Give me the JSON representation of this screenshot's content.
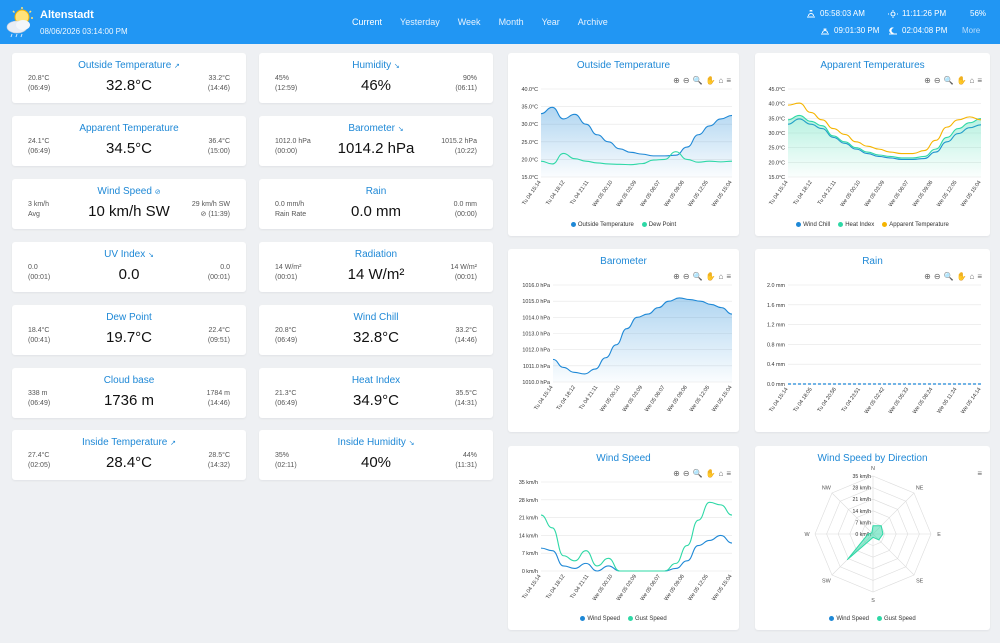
{
  "header": {
    "station": "Altenstadt",
    "timestamp": "08/06/2026 03:14:00 PM",
    "nav": [
      "Current",
      "Yesterday",
      "Week",
      "Month",
      "Year",
      "Archive"
    ],
    "active_nav": "Current",
    "sunrise": "05:58:03 AM",
    "daylight": "11:11:26 PM",
    "moon_phase": "56%",
    "sunset": "09:01:30 PM",
    "moonrise": "02:04:08 PM",
    "more": "More",
    "accent": "#2196f3"
  },
  "cards": [
    {
      "title": "Outside Temperature",
      "trend": "↗",
      "value": "32.8°C",
      "lo1": "20.8°C",
      "lo2": "(06:49)",
      "hi1": "33.2°C",
      "hi2": "(14:46)"
    },
    {
      "title": "Humidity",
      "trend": "↘",
      "value": "46%",
      "lo1": "45%",
      "lo2": "(12:59)",
      "hi1": "90%",
      "hi2": "(06:11)"
    },
    {
      "title": "Apparent Temperature",
      "trend": "",
      "value": "34.5°C",
      "lo1": "24.1°C",
      "lo2": "(06:49)",
      "hi1": "36.4°C",
      "hi2": "(15:00)"
    },
    {
      "title": "Barometer",
      "trend": "↘",
      "value": "1014.2 hPa",
      "lo1": "1012.0 hPa",
      "lo2": "(00:00)",
      "hi1": "1015.2 hPa",
      "hi2": "(10:22)"
    },
    {
      "title": "Wind Speed",
      "trend": "⊘",
      "value": "10 km/h SW",
      "lo1": "3 km/h",
      "lo2": "Avg",
      "hi1": "29 km/h SW",
      "hi2": "⊘ (11:39)"
    },
    {
      "title": "Rain",
      "trend": "",
      "value": "0.0 mm",
      "lo1": "0.0 mm/h",
      "lo2": "Rain Rate",
      "hi1": "0.0 mm",
      "hi2": "(00:00)"
    },
    {
      "title": "UV Index",
      "trend": "↘",
      "value": "0.0",
      "lo1": "0.0",
      "lo2": "(00:01)",
      "hi1": "0.0",
      "hi2": "(00:01)"
    },
    {
      "title": "Radiation",
      "trend": "",
      "value": "14 W/m²",
      "lo1": "14 W/m²",
      "lo2": "(00:01)",
      "hi1": "14 W/m²",
      "hi2": "(00:01)"
    },
    {
      "title": "Dew Point",
      "trend": "",
      "value": "19.7°C",
      "lo1": "18.4°C",
      "lo2": "(00:41)",
      "hi1": "22.4°C",
      "hi2": "(09:51)"
    },
    {
      "title": "Wind Chill",
      "trend": "",
      "value": "32.8°C",
      "lo1": "20.8°C",
      "lo2": "(06:49)",
      "hi1": "33.2°C",
      "hi2": "(14:46)"
    },
    {
      "title": "Cloud base",
      "trend": "",
      "value": "1736 m",
      "lo1": "338 m",
      "lo2": "(06:49)",
      "hi1": "1784 m",
      "hi2": "(14:46)"
    },
    {
      "title": "Heat Index",
      "trend": "",
      "value": "34.9°C",
      "lo1": "21.3°C",
      "lo2": "(06:49)",
      "hi1": "35.5°C",
      "hi2": "(14:31)"
    },
    {
      "title": "Inside Temperature",
      "trend": "↗",
      "value": "28.4°C",
      "lo1": "27.4°C",
      "lo2": "(02:05)",
      "hi1": "28.5°C",
      "hi2": "(14:32)"
    },
    {
      "title": "Inside Humidity",
      "trend": "↘",
      "value": "40%",
      "lo1": "35%",
      "lo2": "(02:11)",
      "hi1": "44%",
      "hi2": "(11:31)"
    }
  ],
  "chart_data": [
    {
      "type": "area",
      "title": "Outside Temperature",
      "x_ticks": [
        "Tu 04 15:14",
        "Tu 04 18:12",
        "Tu 04 21:11",
        "We 05 00:10",
        "We 05 03:09",
        "We 05 06:07",
        "We 05 09:06",
        "We 05 12:05",
        "We 05 15:04"
      ],
      "y_ticks": [
        "40.0°C",
        "35.0°C",
        "30.0°C",
        "25.0°C",
        "20.0°C",
        "15.0°C"
      ],
      "ylim": [
        15,
        40
      ],
      "series": [
        {
          "name": "Outside Temperature",
          "color": "#1e88d6",
          "fill": true,
          "values": [
            33.0,
            34.8,
            31.5,
            32.8,
            30.0,
            27.0,
            25.0,
            23.0,
            22.0,
            21.5,
            21.0,
            21.0,
            21.2,
            23.5,
            27.0,
            29.5,
            31.5,
            32.5
          ]
        },
        {
          "name": "Dew Point",
          "color": "#2ed8a6",
          "fill": false,
          "values": [
            19.5,
            18.7,
            21.7,
            20.2,
            19.5,
            19.0,
            18.7,
            18.6,
            18.5,
            18.8,
            19.8,
            20.0,
            22.2,
            20.0,
            19.2,
            19.5,
            19.3,
            19.5
          ]
        }
      ]
    },
    {
      "type": "area",
      "title": "Apparent Temperatures",
      "x_ticks": [
        "Tu 04 15:14",
        "Tu 04 18:12",
        "Tu 04 21:11",
        "We 05 00:10",
        "We 05 03:09",
        "We 05 06:07",
        "We 05 09:06",
        "We 05 12:05",
        "We 05 15:04"
      ],
      "y_ticks": [
        "45.0°C",
        "40.0°C",
        "35.0°C",
        "30.0°C",
        "25.0°C",
        "20.0°C",
        "15.0°C"
      ],
      "ylim": [
        15,
        45
      ],
      "series": [
        {
          "name": "Wind Chill",
          "color": "#1e88d6",
          "fill": false,
          "values": [
            33.0,
            34.8,
            33.0,
            31.5,
            28.5,
            26.5,
            24.5,
            23.0,
            22.0,
            21.5,
            21.0,
            21.0,
            21.3,
            23.5,
            27.0,
            29.8,
            31.8,
            32.8
          ]
        },
        {
          "name": "Heat Index",
          "color": "#2ed8a6",
          "fill": true,
          "values": [
            34.5,
            36.0,
            34.0,
            32.5,
            29.0,
            27.0,
            25.0,
            23.5,
            22.5,
            22.0,
            21.5,
            21.5,
            22.0,
            24.5,
            28.5,
            31.5,
            33.5,
            34.9
          ]
        },
        {
          "name": "Apparent Temperature",
          "color": "#f5b400",
          "fill": false,
          "values": [
            39.5,
            40.2,
            37.0,
            34.5,
            31.5,
            29.5,
            27.0,
            25.5,
            24.5,
            23.5,
            23.0,
            23.0,
            24.0,
            27.5,
            32.0,
            34.5,
            35.5,
            34.5
          ]
        }
      ]
    },
    {
      "type": "area",
      "title": "Barometer",
      "x_ticks": [
        "Tu 04 15:14",
        "Tu 04 18:12",
        "Tu 04 21:11",
        "We 05 00:10",
        "We 05 03:09",
        "We 05 06:07",
        "We 05 09:06",
        "We 05 12:05",
        "We 05 15:04"
      ],
      "y_ticks": [
        "1016.0 hPa",
        "1015.0 hPa",
        "1014.0 hPa",
        "1013.0 hPa",
        "1012.0 hPa",
        "1011.0 hPa",
        "1010.0 hPa"
      ],
      "ylim": [
        1010,
        1016
      ],
      "series": [
        {
          "name": "Barometer",
          "color": "#1e88d6",
          "fill": true,
          "values": [
            1011.4,
            1010.9,
            1010.6,
            1010.5,
            1010.8,
            1011.5,
            1012.3,
            1013.3,
            1014.0,
            1014.2,
            1014.6,
            1015.0,
            1015.2,
            1015.1,
            1015.0,
            1014.8,
            1014.6,
            1014.2
          ]
        }
      ]
    },
    {
      "type": "bar",
      "title": "Rain",
      "x_ticks": [
        "Tu 04 15:14",
        "Tu 04 18:05",
        "Tu 04 20:56",
        "Tu 04 23:51",
        "We 05 02:42",
        "We 05 05:33",
        "We 05 08:24",
        "We 05 11:24",
        "We 05 14:14"
      ],
      "y_ticks": [
        "2.0 mm",
        "1.6 mm",
        "1.2 mm",
        "0.8 mm",
        "0.4 mm",
        "0.0 mm"
      ],
      "ylim": [
        0,
        2
      ],
      "series": [
        {
          "name": "Rain",
          "color": "#1e88d6",
          "fill": false,
          "values": [
            0,
            0,
            0,
            0,
            0,
            0,
            0,
            0,
            0,
            0,
            0,
            0,
            0,
            0,
            0,
            0,
            0,
            0
          ]
        }
      ]
    },
    {
      "type": "line",
      "title": "Wind Speed",
      "x_ticks": [
        "Tu 04 15:14",
        "Tu 04 18:12",
        "Tu 04 21:11",
        "We 05 00:10",
        "We 05 03:09",
        "We 05 06:07",
        "We 05 09:06",
        "We 05 12:05",
        "We 05 15:04"
      ],
      "y_ticks": [
        "35 km/h",
        "28 km/h",
        "21 km/h",
        "14 km/h",
        "7 km/h",
        "0 km/h"
      ],
      "ylim": [
        0,
        35
      ],
      "series": [
        {
          "name": "Wind Speed",
          "color": "#1e88d6",
          "fill": false,
          "values": [
            9,
            8,
            2,
            1,
            3,
            0,
            2,
            0,
            0,
            0,
            0,
            0,
            1,
            4,
            10,
            12,
            14,
            11
          ]
        },
        {
          "name": "Gust Speed",
          "color": "#2ed8a6",
          "fill": false,
          "values": [
            22,
            17,
            6,
            4,
            8,
            2,
            5,
            0,
            0,
            0,
            0,
            0,
            3,
            10,
            20,
            27,
            26,
            22
          ]
        }
      ]
    },
    {
      "type": "radar",
      "title": "Wind Speed by Direction",
      "directions": [
        "N",
        "NE",
        "E",
        "SE",
        "S",
        "SW",
        "W",
        "NW"
      ],
      "r_ticks": [
        "35 km/h",
        "28 km/h",
        "21 km/h",
        "14 km/h",
        "7 km/h",
        "0 km/h"
      ],
      "rlim": [
        0,
        35
      ],
      "series": [
        {
          "name": "Wind Speed",
          "color": "#1e88d6",
          "values": [
            0,
            0,
            0,
            0,
            0,
            0,
            0,
            0
          ]
        },
        {
          "name": "Gust Speed",
          "color": "#2ed8a6",
          "values": [
            5,
            7,
            6,
            5,
            2,
            22,
            3,
            1
          ]
        }
      ]
    }
  ]
}
